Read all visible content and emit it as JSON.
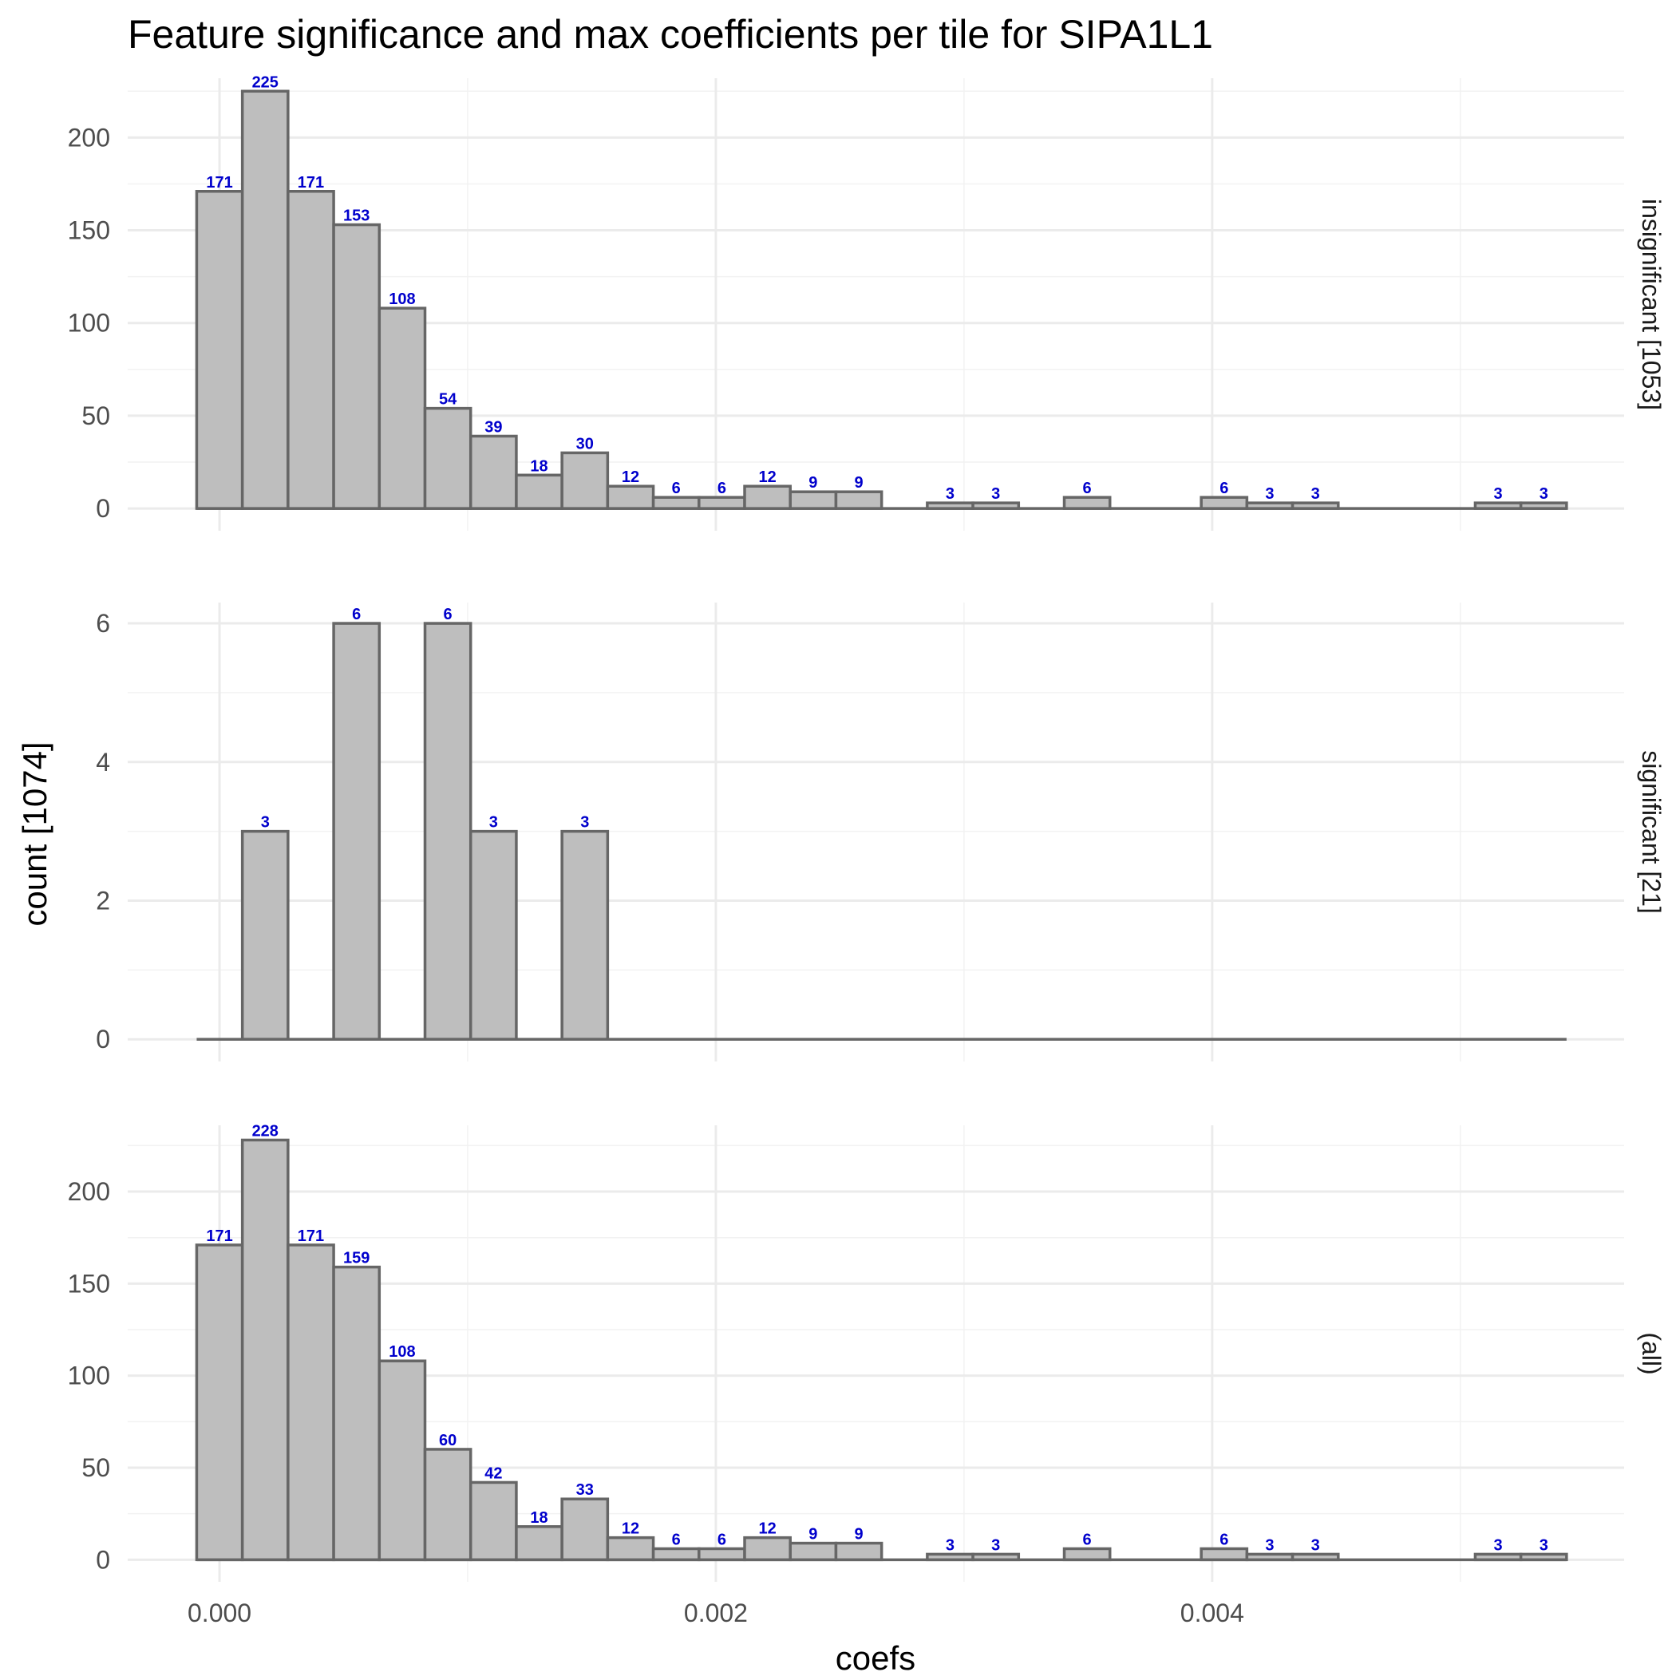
{
  "chart_data": {
    "type": "bar",
    "title": "Feature significance and max coefficients per tile for SIPA1L1",
    "xlabel": "coefs",
    "ylabel": "count [1074]",
    "x_ticks": [
      "0.000",
      "0.002",
      "0.004"
    ],
    "x_tick_values": [
      0,
      0.002,
      0.004
    ],
    "xlim": [
      -0.00037,
      0.00566
    ],
    "bin_width": 0.000184,
    "bin_start": -9.2e-05,
    "grid": true,
    "legend": "none",
    "colors": {
      "bar_fill": "#bebebe",
      "bar_outline": "#666666",
      "label": "#0000cc",
      "grid": "#ebebeb"
    },
    "panels": [
      {
        "label": "insignificant [1053]",
        "ylim": [
          -12,
          232
        ],
        "y_ticks": [
          "0",
          "50",
          "100",
          "150",
          "200"
        ],
        "y_tick_values": [
          0,
          50,
          100,
          150,
          200
        ],
        "values": [
          171,
          225,
          171,
          153,
          108,
          54,
          39,
          18,
          30,
          12,
          6,
          6,
          12,
          9,
          9,
          0,
          3,
          3,
          0,
          6,
          0,
          0,
          6,
          3,
          3,
          0,
          0,
          0,
          3,
          3
        ]
      },
      {
        "label": "significant [21]",
        "ylim": [
          -0.32,
          6.3
        ],
        "y_ticks": [
          "0",
          "2",
          "4",
          "6"
        ],
        "y_tick_values": [
          0,
          2,
          4,
          6
        ],
        "values": [
          0,
          3,
          0,
          6,
          0,
          6,
          3,
          0,
          3,
          0,
          0,
          0,
          0,
          0,
          0,
          0,
          0,
          0,
          0,
          0,
          0,
          0,
          0,
          0,
          0,
          0,
          0,
          0,
          0,
          0
        ]
      },
      {
        "label": "(all)",
        "ylim": [
          -12,
          236
        ],
        "y_ticks": [
          "0",
          "50",
          "100",
          "150",
          "200"
        ],
        "y_tick_values": [
          0,
          50,
          100,
          150,
          200
        ],
        "values": [
          171,
          228,
          171,
          159,
          108,
          60,
          42,
          18,
          33,
          12,
          6,
          6,
          12,
          9,
          9,
          0,
          3,
          3,
          0,
          6,
          0,
          0,
          6,
          3,
          3,
          0,
          0,
          0,
          3,
          3
        ]
      }
    ]
  }
}
